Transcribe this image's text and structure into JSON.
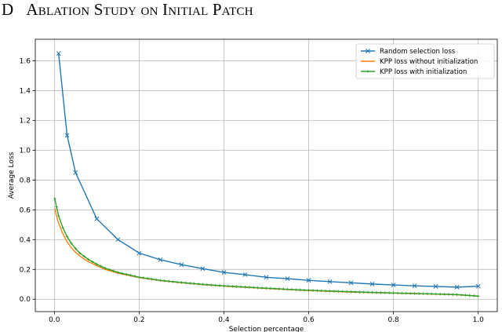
{
  "heading": {
    "number": "D",
    "title": "Ablation Study on Initial Patch"
  },
  "chart_data": {
    "type": "line",
    "title": "",
    "xlabel": "Selection percentage",
    "ylabel": "Average Loss",
    "xlim": [
      -0.045,
      1.045
    ],
    "ylim": [
      -0.083,
      1.745
    ],
    "xticks": [
      0.0,
      0.2,
      0.4,
      0.6,
      0.8,
      1.0
    ],
    "xtick_labels": [
      "0.0",
      "0.2",
      "0.4",
      "0.6",
      "0.8",
      "1.0"
    ],
    "yticks": [
      0.0,
      0.2,
      0.4,
      0.6,
      0.8,
      1.0,
      1.2,
      1.4,
      1.6
    ],
    "ytick_labels": [
      "0.0",
      "0.2",
      "0.4",
      "0.6",
      "0.8",
      "1.0",
      "1.2",
      "1.4",
      "1.6"
    ],
    "grid": true,
    "legend_position": "top-right",
    "series": [
      {
        "name": "Random selection loss",
        "color": "#1f77b4",
        "marker": "x",
        "x": [
          0.01,
          0.03,
          0.05,
          0.1,
          0.15,
          0.2,
          0.25,
          0.3,
          0.35,
          0.4,
          0.45,
          0.5,
          0.55,
          0.6,
          0.65,
          0.7,
          0.75,
          0.8,
          0.85,
          0.9,
          0.95,
          1.0
        ],
        "y": [
          1.65,
          1.1,
          0.85,
          0.54,
          0.4,
          0.31,
          0.265,
          0.232,
          0.205,
          0.18,
          0.165,
          0.147,
          0.138,
          0.127,
          0.118,
          0.11,
          0.102,
          0.096,
          0.09,
          0.086,
          0.081,
          0.087
        ]
      },
      {
        "name": "KPP loss without initialization",
        "color": "#ff7f0e",
        "marker": "none",
        "x": [
          0.001,
          0.005,
          0.01,
          0.02,
          0.03,
          0.04,
          0.05,
          0.06,
          0.07,
          0.08,
          0.1,
          0.12,
          0.15,
          0.2,
          0.25,
          0.3,
          0.35,
          0.4,
          0.5,
          0.6,
          0.7,
          0.8,
          0.9,
          0.95,
          1.0
        ],
        "y": [
          0.61,
          0.56,
          0.51,
          0.44,
          0.385,
          0.345,
          0.315,
          0.29,
          0.27,
          0.253,
          0.225,
          0.2,
          0.175,
          0.145,
          0.125,
          0.11,
          0.098,
          0.088,
          0.072,
          0.058,
          0.048,
          0.041,
          0.034,
          0.03,
          0.02
        ]
      },
      {
        "name": "KPP loss with initialization",
        "color": "#2ca02c",
        "marker": "+",
        "x": [
          0.001,
          0.005,
          0.01,
          0.02,
          0.03,
          0.04,
          0.05,
          0.06,
          0.07,
          0.08,
          0.1,
          0.12,
          0.15,
          0.2,
          0.25,
          0.3,
          0.35,
          0.4,
          0.5,
          0.6,
          0.7,
          0.8,
          0.9,
          0.95,
          1.0
        ],
        "y": [
          0.675,
          0.62,
          0.56,
          0.48,
          0.42,
          0.375,
          0.34,
          0.31,
          0.288,
          0.268,
          0.235,
          0.208,
          0.18,
          0.148,
          0.127,
          0.112,
          0.1,
          0.09,
          0.074,
          0.06,
          0.05,
          0.042,
          0.035,
          0.031,
          0.021
        ]
      }
    ]
  }
}
